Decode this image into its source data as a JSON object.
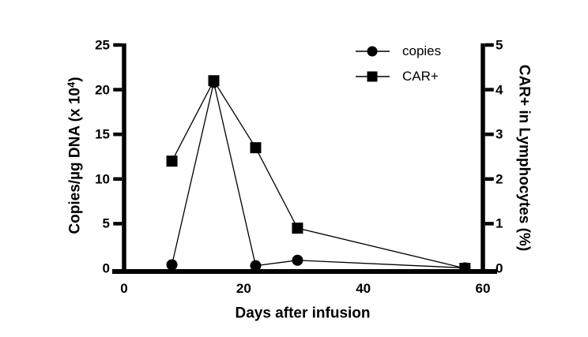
{
  "chart_data": {
    "type": "line",
    "title": "",
    "x": [
      8,
      15,
      22,
      29,
      57
    ],
    "series": [
      {
        "name": "copies",
        "axis": "left",
        "marker": "circle",
        "values": [
          0.4,
          20.8,
          0.3,
          0.9,
          0.05
        ]
      },
      {
        "name": "CAR+",
        "axis": "right",
        "marker": "square",
        "values": [
          2.4,
          4.2,
          2.7,
          0.9,
          0.0
        ]
      }
    ],
    "x_axis": {
      "label": "Days after infusion",
      "range": [
        0,
        60
      ],
      "ticks": [
        0,
        20,
        40,
        60
      ]
    },
    "left_axis": {
      "label": "Copies/µg DNA (x 10⁴)",
      "label_parts": {
        "prefix": "Copies/µg DNA (x 10",
        "sup": "4",
        "suffix": ")"
      },
      "range": [
        0,
        25
      ],
      "ticks": [
        0,
        5,
        10,
        15,
        20,
        25
      ]
    },
    "right_axis": {
      "label": "CAR+ in Lymphocytes (%)",
      "range": [
        0,
        5
      ],
      "ticks": [
        0,
        1,
        2,
        3,
        4,
        5
      ]
    },
    "legend": {
      "position": "top-right-inside",
      "entries": [
        {
          "label": "copies",
          "marker": "circle"
        },
        {
          "label": "CAR+",
          "marker": "square"
        }
      ]
    },
    "grid": false,
    "colors": {
      "foreground": "#000000",
      "background": "#ffffff"
    }
  }
}
